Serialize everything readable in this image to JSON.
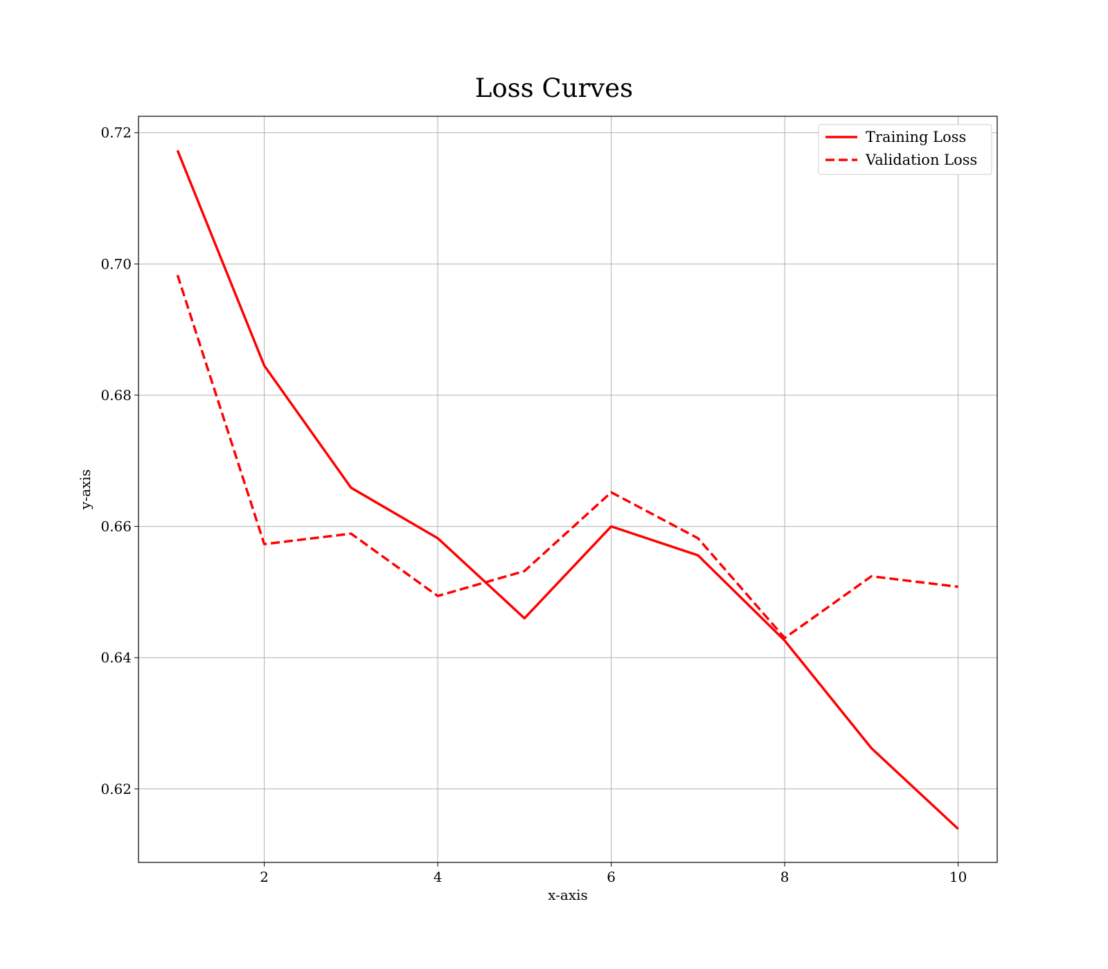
{
  "chart_data": {
    "type": "line",
    "title": "Loss Curves",
    "xlabel": "x-axis",
    "ylabel": "y-axis",
    "x": [
      1,
      2,
      3,
      4,
      5,
      6,
      7,
      8,
      9,
      10
    ],
    "xlim": [
      0.55,
      10.45
    ],
    "ylim": [
      0.6088,
      0.7225
    ],
    "xticks": [
      2,
      4,
      6,
      8,
      10
    ],
    "xtick_labels": [
      "2",
      "4",
      "6",
      "8",
      "10"
    ],
    "yticks": [
      0.62,
      0.64,
      0.66,
      0.68,
      0.7,
      0.72
    ],
    "ytick_labels": [
      "0.62",
      "0.64",
      "0.66",
      "0.68",
      "0.70",
      "0.72"
    ],
    "grid": true,
    "legend_position": "top-right",
    "series": [
      {
        "name": "Training Loss",
        "style": "solid",
        "color": "#ff0000",
        "values": [
          0.7173,
          0.6845,
          0.6659,
          0.6582,
          0.646,
          0.66,
          0.6556,
          0.6426,
          0.6262,
          0.6139
        ]
      },
      {
        "name": "Validation Loss",
        "style": "dashed",
        "color": "#ff0000",
        "values": [
          0.6983,
          0.6573,
          0.6589,
          0.6494,
          0.6532,
          0.6652,
          0.6582,
          0.643,
          0.6524,
          0.6508
        ]
      }
    ]
  }
}
